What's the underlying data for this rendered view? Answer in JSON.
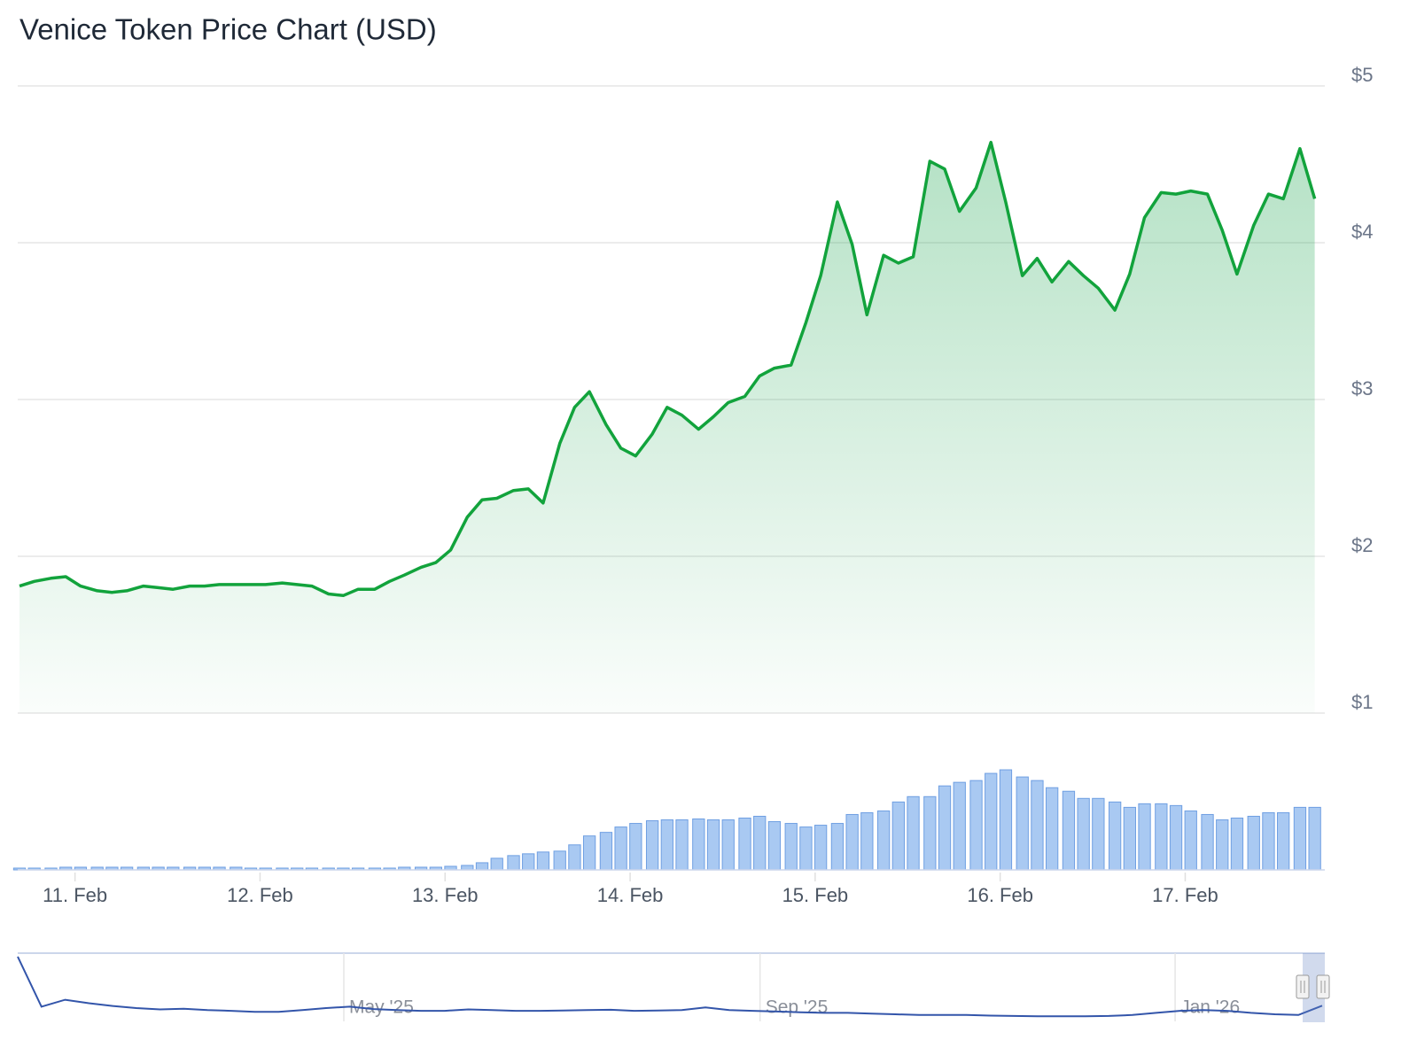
{
  "chart_data": [
    {
      "type": "area",
      "title": "Venice Token Price Chart (USD)",
      "color": "#12a33c",
      "x": [
        10.7,
        10.78,
        10.87,
        10.95,
        11.03,
        11.12,
        11.2,
        11.28,
        11.37,
        11.45,
        11.53,
        11.62,
        11.7,
        11.78,
        11.87,
        11.95,
        12.03,
        12.12,
        12.2,
        12.28,
        12.37,
        12.45,
        12.53,
        12.62,
        12.7,
        12.78,
        12.87,
        12.95,
        13.03,
        13.12,
        13.2,
        13.28,
        13.37,
        13.45,
        13.53,
        13.62,
        13.7,
        13.78,
        13.87,
        13.95,
        14.03,
        14.12,
        14.2,
        14.28,
        14.37,
        14.45,
        14.53,
        14.62,
        14.7,
        14.78,
        14.87,
        14.95,
        15.03,
        15.12,
        15.2,
        15.28,
        15.37,
        15.45,
        15.53,
        15.62,
        15.7,
        15.78,
        15.87,
        15.95,
        16.03,
        16.12,
        16.2,
        16.28,
        16.37,
        16.45,
        16.53,
        16.62,
        16.7,
        16.78,
        16.87,
        16.95,
        17.03,
        17.12,
        17.2,
        17.28,
        17.37,
        17.45,
        17.53,
        17.62,
        17.7
      ],
      "values": [
        1.81,
        1.84,
        1.86,
        1.87,
        1.81,
        1.78,
        1.77,
        1.78,
        1.81,
        1.8,
        1.79,
        1.81,
        1.81,
        1.82,
        1.82,
        1.82,
        1.82,
        1.83,
        1.82,
        1.81,
        1.76,
        1.75,
        1.79,
        1.79,
        1.84,
        1.88,
        1.93,
        1.96,
        2.04,
        2.25,
        2.36,
        2.37,
        2.42,
        2.43,
        2.34,
        2.72,
        2.95,
        3.05,
        2.84,
        2.69,
        2.64,
        2.78,
        2.95,
        2.9,
        2.81,
        2.89,
        2.98,
        3.02,
        3.15,
        3.2,
        3.22,
        3.49,
        3.79,
        4.26,
        3.99,
        3.54,
        3.92,
        3.87,
        3.91,
        4.52,
        4.47,
        4.2,
        4.35,
        4.64,
        4.26,
        3.79,
        3.9,
        3.75,
        3.88,
        3.79,
        3.71,
        3.57,
        3.8,
        4.16,
        4.32,
        4.31,
        4.33,
        4.31,
        4.08,
        3.8,
        4.11,
        4.31,
        4.28,
        4.6,
        4.28
      ],
      "volume": [
        2,
        2,
        2,
        3,
        3,
        3,
        3,
        3,
        3,
        3,
        3,
        3,
        3,
        3,
        3,
        2,
        2,
        2,
        2,
        2,
        2,
        2,
        2,
        2,
        2,
        3,
        3,
        3,
        4,
        5,
        8,
        13,
        16,
        18,
        20,
        21,
        28,
        38,
        42,
        48,
        52,
        55,
        56,
        56,
        57,
        56,
        56,
        58,
        60,
        54,
        52,
        48,
        50,
        52,
        62,
        64,
        66,
        76,
        82,
        82,
        94,
        98,
        100,
        108,
        112,
        104,
        100,
        92,
        88,
        80,
        80,
        76,
        70,
        74,
        74,
        72,
        66,
        62,
        56,
        58,
        60,
        64,
        64,
        70,
        70
      ],
      "volume_color": "#a9c9f2",
      "volume_ylim": [
        0,
        115
      ],
      "xlim": [
        10.7,
        17.74
      ],
      "xticks": [
        {
          "value": 11,
          "label": "11. Feb"
        },
        {
          "value": 12,
          "label": "12. Feb"
        },
        {
          "value": 13,
          "label": "13. Feb"
        },
        {
          "value": 14,
          "label": "14. Feb"
        },
        {
          "value": 15,
          "label": "15. Feb"
        },
        {
          "value": 16,
          "label": "16. Feb"
        },
        {
          "value": 17,
          "label": "17. Feb"
        }
      ],
      "ylim": [
        1,
        5
      ],
      "yticks": [
        {
          "value": 1,
          "label": "$1"
        },
        {
          "value": 2,
          "label": "$2"
        },
        {
          "value": 3,
          "label": "$3"
        },
        {
          "value": 4,
          "label": "$4"
        },
        {
          "value": 5,
          "label": "$5"
        }
      ],
      "grid": true
    },
    {
      "type": "line",
      "color": "#3355aa",
      "values": [
        18.5,
        4.0,
        6.0,
        5.0,
        4.2,
        3.6,
        3.2,
        3.4,
        3.0,
        2.8,
        2.5,
        2.5,
        3.0,
        3.6,
        4.0,
        3.3,
        3.0,
        2.8,
        2.8,
        3.2,
        3.0,
        2.8,
        2.8,
        2.9,
        3.0,
        3.1,
        2.8,
        2.9,
        3.0,
        3.8,
        3.0,
        2.8,
        2.6,
        2.4,
        2.2,
        2.2,
        2.0,
        1.8,
        1.6,
        1.6,
        1.6,
        1.4,
        1.3,
        1.2,
        1.2,
        1.2,
        1.3,
        1.6,
        2.2,
        2.8,
        3.0,
        2.8,
        2.2,
        1.8,
        1.6,
        4.3
      ],
      "xlim": [
        0,
        55
      ],
      "ylim": [
        0,
        19
      ],
      "xticks": [
        {
          "value": 13.75,
          "label": "May '25"
        },
        {
          "value": 31.3,
          "label": "Sep '25"
        },
        {
          "value": 48.8,
          "label": "Jan '26"
        }
      ]
    }
  ]
}
